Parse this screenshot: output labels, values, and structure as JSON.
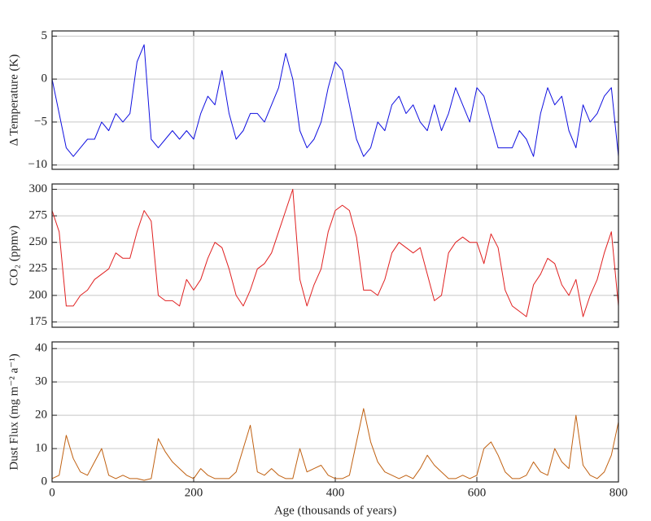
{
  "chart_data": [
    {
      "type": "line",
      "ylabel": "Δ Temperature (K)",
      "x": [
        0,
        10,
        20,
        30,
        40,
        50,
        60,
        70,
        80,
        90,
        100,
        110,
        120,
        130,
        140,
        150,
        160,
        170,
        180,
        190,
        200,
        210,
        220,
        230,
        240,
        250,
        260,
        270,
        280,
        290,
        300,
        310,
        320,
        330,
        340,
        350,
        360,
        370,
        380,
        390,
        400,
        410,
        420,
        430,
        440,
        450,
        460,
        470,
        480,
        490,
        500,
        510,
        520,
        530,
        540,
        550,
        560,
        570,
        580,
        590,
        600,
        610,
        620,
        630,
        640,
        650,
        660,
        670,
        680,
        690,
        700,
        710,
        720,
        730,
        740,
        750,
        760,
        770,
        780,
        790,
        800
      ],
      "series": [
        {
          "name": "Temperature",
          "color": "#1010e0",
          "values": [
            0,
            -4,
            -8,
            -9,
            -8,
            -7,
            -7,
            -5,
            -6,
            -4,
            -5,
            -4,
            2,
            4,
            -7,
            -8,
            -7,
            -6,
            -7,
            -6,
            -7,
            -4,
            -2,
            -3,
            1,
            -4,
            -7,
            -6,
            -4,
            -4,
            -5,
            -3,
            -1,
            3,
            0,
            -6,
            -8,
            -7,
            -5,
            -1,
            2,
            1,
            -3,
            -7,
            -9,
            -8,
            -5,
            -6,
            -3,
            -2,
            -4,
            -3,
            -5,
            -6,
            -3,
            -6,
            -4,
            -1,
            -3,
            -5,
            -1,
            -2,
            -5,
            -8,
            -8,
            -8,
            -6,
            -7,
            -9,
            -4,
            -1,
            -3,
            -2,
            -6,
            -8,
            -3,
            -5,
            -4,
            -2,
            -1,
            -9
          ]
        }
      ],
      "xlim": [
        0,
        800
      ],
      "xticks": [
        0,
        200,
        400,
        600,
        800
      ],
      "ylim": [
        -10.5,
        5.6
      ],
      "yticks": [
        {
          "value": -10,
          "label": "−10"
        },
        {
          "value": -5,
          "label": "−5"
        },
        0,
        5
      ],
      "grid": true
    },
    {
      "type": "line",
      "ylabel": "CO₂ (ppmv)",
      "x": [
        0,
        10,
        20,
        30,
        40,
        50,
        60,
        70,
        80,
        90,
        100,
        110,
        120,
        130,
        140,
        150,
        160,
        170,
        180,
        190,
        200,
        210,
        220,
        230,
        240,
        250,
        260,
        270,
        280,
        290,
        300,
        310,
        320,
        330,
        340,
        350,
        360,
        370,
        380,
        390,
        400,
        410,
        420,
        430,
        440,
        450,
        460,
        470,
        480,
        490,
        500,
        510,
        520,
        530,
        540,
        550,
        560,
        570,
        580,
        590,
        600,
        610,
        620,
        630,
        640,
        650,
        660,
        670,
        680,
        690,
        700,
        710,
        720,
        730,
        740,
        750,
        760,
        770,
        780,
        790,
        800
      ],
      "series": [
        {
          "name": "CO₂",
          "color": "#e02020",
          "values": [
            280,
            260,
            190,
            190,
            200,
            205,
            215,
            220,
            225,
            240,
            235,
            235,
            260,
            280,
            270,
            200,
            195,
            195,
            190,
            215,
            205,
            215,
            235,
            250,
            245,
            225,
            200,
            190,
            205,
            225,
            230,
            240,
            260,
            280,
            300,
            215,
            190,
            210,
            225,
            260,
            280,
            285,
            280,
            255,
            205,
            205,
            200,
            215,
            240,
            250,
            245,
            240,
            245,
            220,
            195,
            200,
            240,
            250,
            255,
            250,
            250,
            230,
            258,
            245,
            205,
            190,
            185,
            180,
            210,
            220,
            235,
            230,
            210,
            200,
            215,
            180,
            200,
            215,
            240,
            260,
            190
          ]
        }
      ],
      "xlim": [
        0,
        800
      ],
      "xticks": [
        0,
        200,
        400,
        600,
        800
      ],
      "ylim": [
        170,
        305
      ],
      "yticks": [
        175,
        200,
        225,
        250,
        275,
        300
      ],
      "grid": true
    },
    {
      "type": "line",
      "ylabel": "Dust Flux (mg m⁻² a⁻¹)",
      "xlabel": "Age (thousands of years)",
      "x": [
        0,
        10,
        20,
        30,
        40,
        50,
        60,
        70,
        80,
        90,
        100,
        110,
        120,
        130,
        140,
        150,
        160,
        170,
        180,
        190,
        200,
        210,
        220,
        230,
        240,
        250,
        260,
        270,
        280,
        290,
        300,
        310,
        320,
        330,
        340,
        350,
        360,
        370,
        380,
        390,
        400,
        410,
        420,
        430,
        440,
        450,
        460,
        470,
        480,
        490,
        500,
        510,
        520,
        530,
        540,
        550,
        560,
        570,
        580,
        590,
        600,
        610,
        620,
        630,
        640,
        650,
        660,
        670,
        680,
        690,
        700,
        710,
        720,
        730,
        740,
        750,
        760,
        770,
        780,
        790,
        800
      ],
      "series": [
        {
          "name": "Dust Flux",
          "color": "#c06010",
          "values": [
            1,
            2,
            14,
            7,
            3,
            2,
            6,
            10,
            2,
            1,
            2,
            1,
            1,
            0.5,
            1,
            13,
            9,
            6,
            4,
            2,
            1,
            4,
            2,
            1,
            1,
            1,
            3,
            10,
            17,
            3,
            2,
            4,
            2,
            1,
            1,
            10,
            3,
            4,
            5,
            2,
            1,
            1,
            2,
            12,
            22,
            12,
            6,
            3,
            2,
            1,
            2,
            1,
            4,
            8,
            5,
            3,
            1,
            1,
            2,
            1,
            2,
            10,
            12,
            8,
            3,
            1,
            1,
            2,
            6,
            3,
            2,
            10,
            6,
            4,
            20,
            5,
            2,
            1,
            3,
            8,
            18
          ]
        }
      ],
      "xlim": [
        0,
        800
      ],
      "xticks": [
        0,
        200,
        400,
        600,
        800
      ],
      "ylim": [
        0,
        42
      ],
      "yticks": [
        0,
        10,
        20,
        30,
        40
      ],
      "grid": true
    }
  ]
}
